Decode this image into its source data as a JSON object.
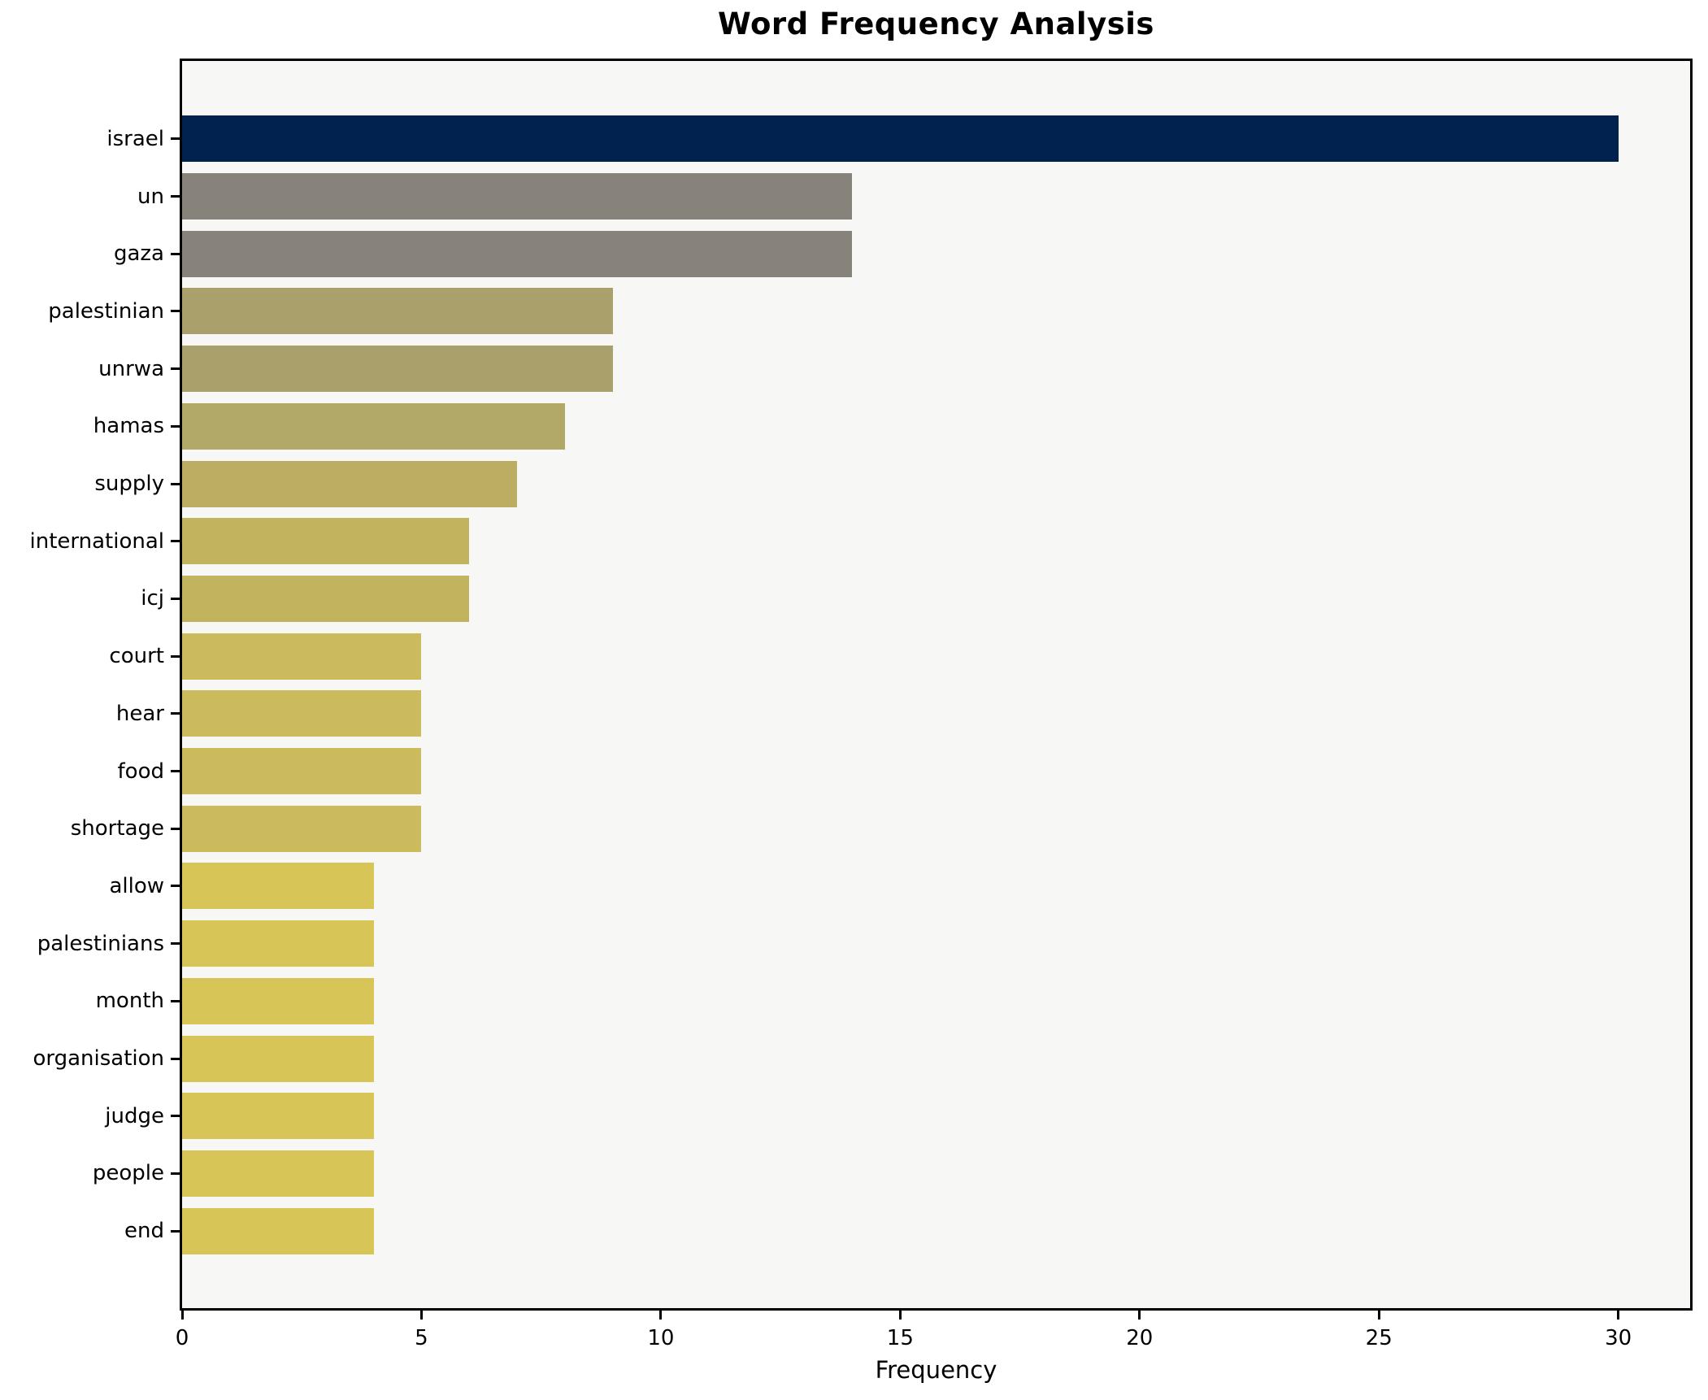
{
  "figure": {
    "background": "#ffffff",
    "plot_background": "#f7f7f5",
    "spine_color": "#000000",
    "text_color": "#000000"
  },
  "chart_data": {
    "type": "bar",
    "orientation": "horizontal",
    "title": "Word Frequency Analysis",
    "xlabel": "Frequency",
    "ylabel": "",
    "categories": [
      "israel",
      "un",
      "gaza",
      "palestinian",
      "unrwa",
      "hamas",
      "supply",
      "international",
      "icj",
      "court",
      "hear",
      "food",
      "shortage",
      "allow",
      "palestinians",
      "month",
      "organisation",
      "judge",
      "people",
      "end"
    ],
    "values": [
      30,
      14,
      14,
      9,
      9,
      8,
      7,
      6,
      6,
      5,
      5,
      5,
      5,
      4,
      4,
      4,
      4,
      4,
      4,
      4
    ],
    "bar_colors": [
      "#01224e",
      "#87827a",
      "#87827a",
      "#aaa06b",
      "#aaa06b",
      "#b2a868",
      "#bbae63",
      "#c2b35f",
      "#c2b35f",
      "#cbbb5c",
      "#cbbb5c",
      "#cbbb5c",
      "#cbbb5c",
      "#d7c558",
      "#d7c558",
      "#d7c558",
      "#d7c558",
      "#d7c558",
      "#d7c558",
      "#d7c558"
    ],
    "xticks": [
      0,
      5,
      10,
      15,
      20,
      25,
      30
    ],
    "xlim": [
      0,
      31.5
    ],
    "grid": false,
    "legend": false
  }
}
